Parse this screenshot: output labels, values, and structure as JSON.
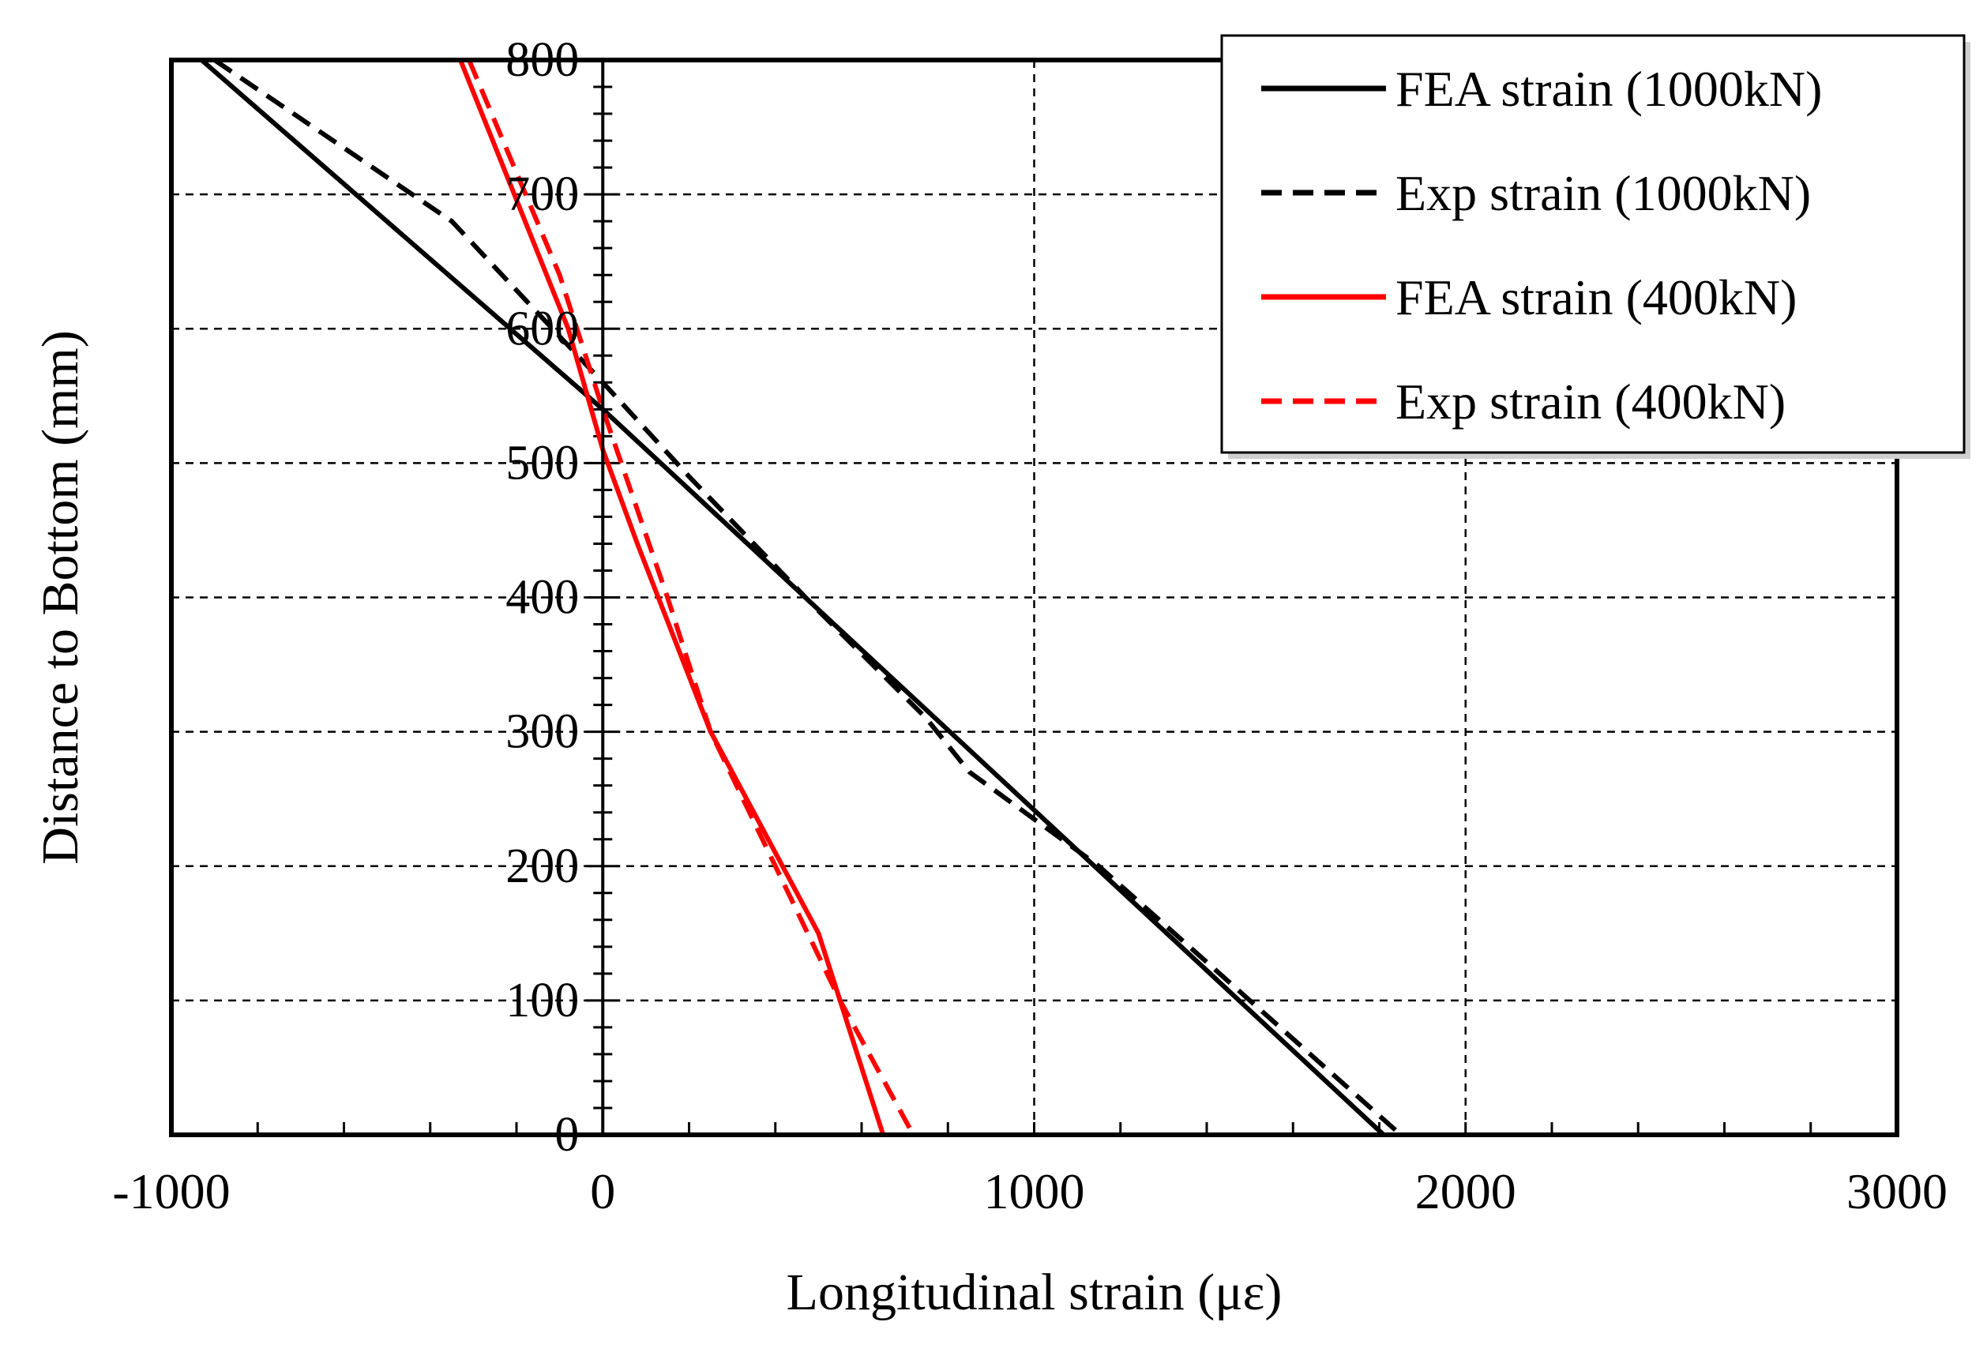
{
  "chart_data": {
    "type": "line",
    "title": "",
    "xlabel": "Longitudinal strain (με)",
    "ylabel": "Distance to Bottom (mm)",
    "xlim": [
      -1000,
      3000
    ],
    "ylim": [
      0,
      800
    ],
    "x_ticks": [
      -1000,
      0,
      1000,
      2000,
      3000
    ],
    "y_ticks": [
      0,
      100,
      200,
      300,
      400,
      500,
      600,
      700,
      800
    ],
    "x_tick_labels": [
      "-1000",
      "0",
      "1000",
      "2000",
      "3000"
    ],
    "y_tick_labels": [
      "0",
      "100",
      "200",
      "300",
      "400",
      "500",
      "600",
      "700",
      "800"
    ],
    "grid": true,
    "legend_position": "top-right",
    "series": [
      {
        "name": "FEA strain (1000kN)",
        "color": "#000000",
        "style": "solid",
        "x": [
          -930,
          0,
          1810
        ],
        "y": [
          800,
          540,
          0
        ]
      },
      {
        "name": "Exp strain (1000kN)",
        "color": "#000000",
        "style": "dashed",
        "x": [
          -900,
          -350,
          0,
          200,
          500,
          750,
          850,
          1150,
          1850
        ],
        "y": [
          800,
          680,
          560,
          490,
          390,
          310,
          270,
          200,
          0
        ]
      },
      {
        "name": "FEA strain (400kN)",
        "color": "#ff0000",
        "style": "solid",
        "x": [
          -330,
          -80,
          0,
          80,
          250,
          500,
          650
        ],
        "y": [
          800,
          600,
          510,
          440,
          300,
          150,
          0
        ]
      },
      {
        "name": "Exp strain (400kN)",
        "color": "#ff0000",
        "style": "dashed",
        "x": [
          -310,
          -100,
          0,
          150,
          250,
          400,
          550,
          720
        ],
        "y": [
          800,
          640,
          540,
          400,
          300,
          200,
          100,
          0
        ]
      }
    ]
  }
}
